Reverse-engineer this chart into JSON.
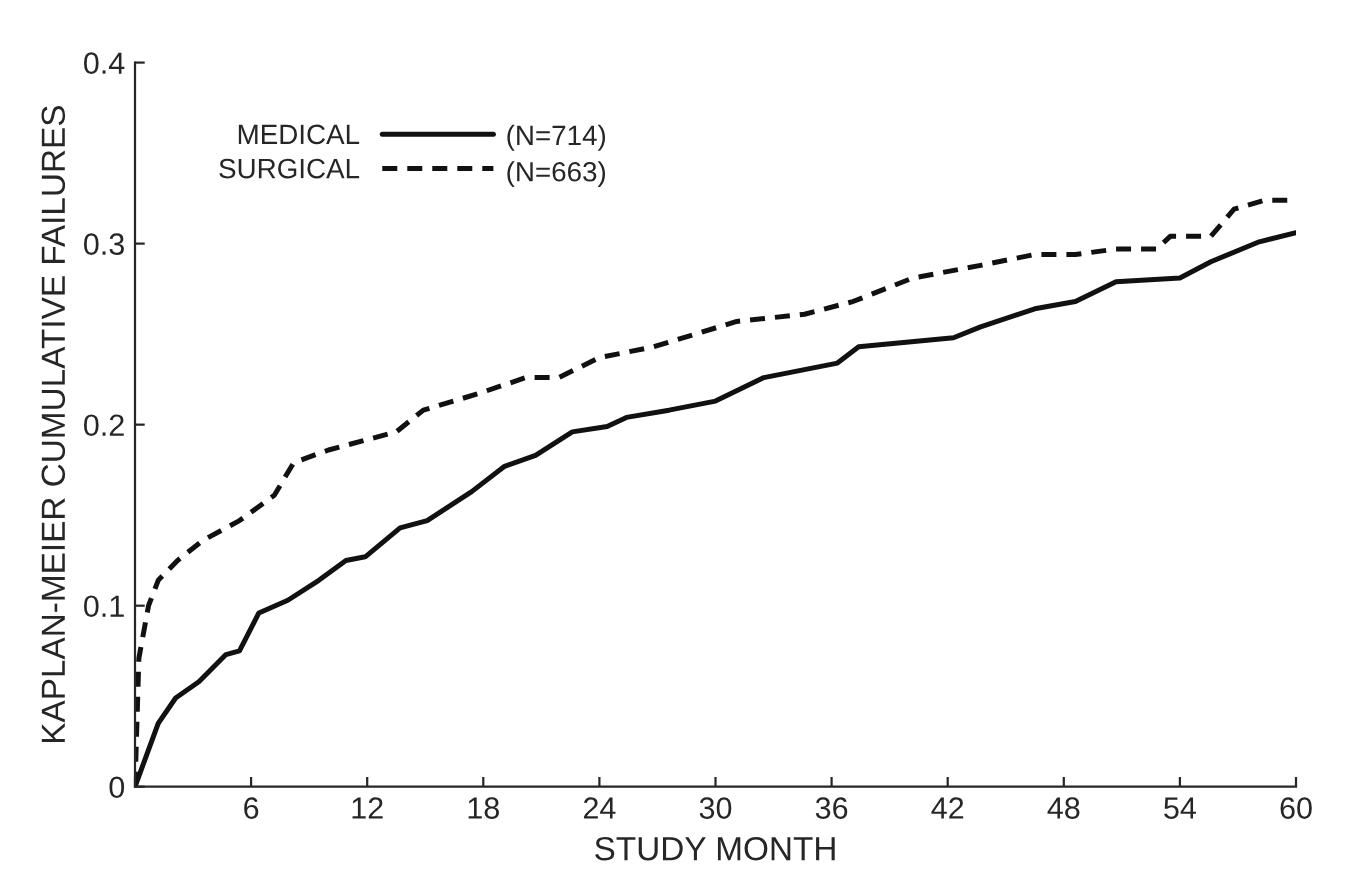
{
  "chart_data": {
    "type": "line",
    "xlabel": "STUDY MONTH",
    "ylabel": "KAPLAN-MEIER CUMULATIVE FAILURES",
    "xlim": [
      0,
      60
    ],
    "xticks": [
      {
        "value": 0,
        "label": null
      },
      6,
      12,
      18,
      24,
      30,
      36,
      42,
      48,
      54,
      60
    ],
    "ylim": [
      0,
      0.4
    ],
    "yticks": [
      0,
      0.1,
      0.2,
      0.3,
      0.4
    ],
    "grid": false,
    "legend": "top left",
    "marker": "none",
    "annotations": [
      "(N=714)",
      "(N=663)"
    ],
    "series": [
      {
        "name": "MEDICAL",
        "color": "#111111",
        "line_style": "solid",
        "x": [
          0,
          1.2,
          2.1,
          3.3,
          4.7,
          5.4,
          6.4,
          7.9,
          9.5,
          10.9,
          11.9,
          13.7,
          15.1,
          17.4,
          19.1,
          20.7,
          22.6,
          24.4,
          25.4,
          27.6,
          30,
          32.5,
          36.3,
          37.4,
          42.3,
          43.7,
          46.5,
          48.6,
          50.7,
          54,
          55.6,
          58.1,
          60
        ],
        "values": [
          0,
          0.035,
          0.049,
          0.058,
          0.073,
          0.075,
          0.096,
          0.103,
          0.114,
          0.125,
          0.127,
          0.143,
          0.147,
          0.163,
          0.177,
          0.183,
          0.196,
          0.199,
          0.204,
          0.208,
          0.213,
          0.226,
          0.234,
          0.243,
          0.248,
          0.254,
          0.264,
          0.268,
          0.279,
          0.281,
          0.29,
          0.301,
          0.306
        ]
      },
      {
        "name": "SURGICAL",
        "color": "#111111",
        "line_style": "dashed",
        "x": [
          0,
          0.2,
          0.7,
          1.2,
          2.2,
          3.5,
          5.4,
          7.2,
          8.2,
          10,
          13.5,
          14.9,
          17.7,
          20.2,
          21.9,
          24,
          26.8,
          31.1,
          34.6,
          37.1,
          40.2,
          43.7,
          46.5,
          48.6,
          50.7,
          52.8,
          53.5,
          55.6,
          56.8,
          58.4,
          60
        ],
        "values": [
          0,
          0.071,
          0.1,
          0.114,
          0.125,
          0.136,
          0.147,
          0.161,
          0.179,
          0.186,
          0.196,
          0.208,
          0.217,
          0.226,
          0.226,
          0.237,
          0.243,
          0.257,
          0.261,
          0.268,
          0.281,
          0.288,
          0.294,
          0.294,
          0.297,
          0.297,
          0.304,
          0.304,
          0.319,
          0.324,
          0.324
        ]
      }
    ]
  }
}
